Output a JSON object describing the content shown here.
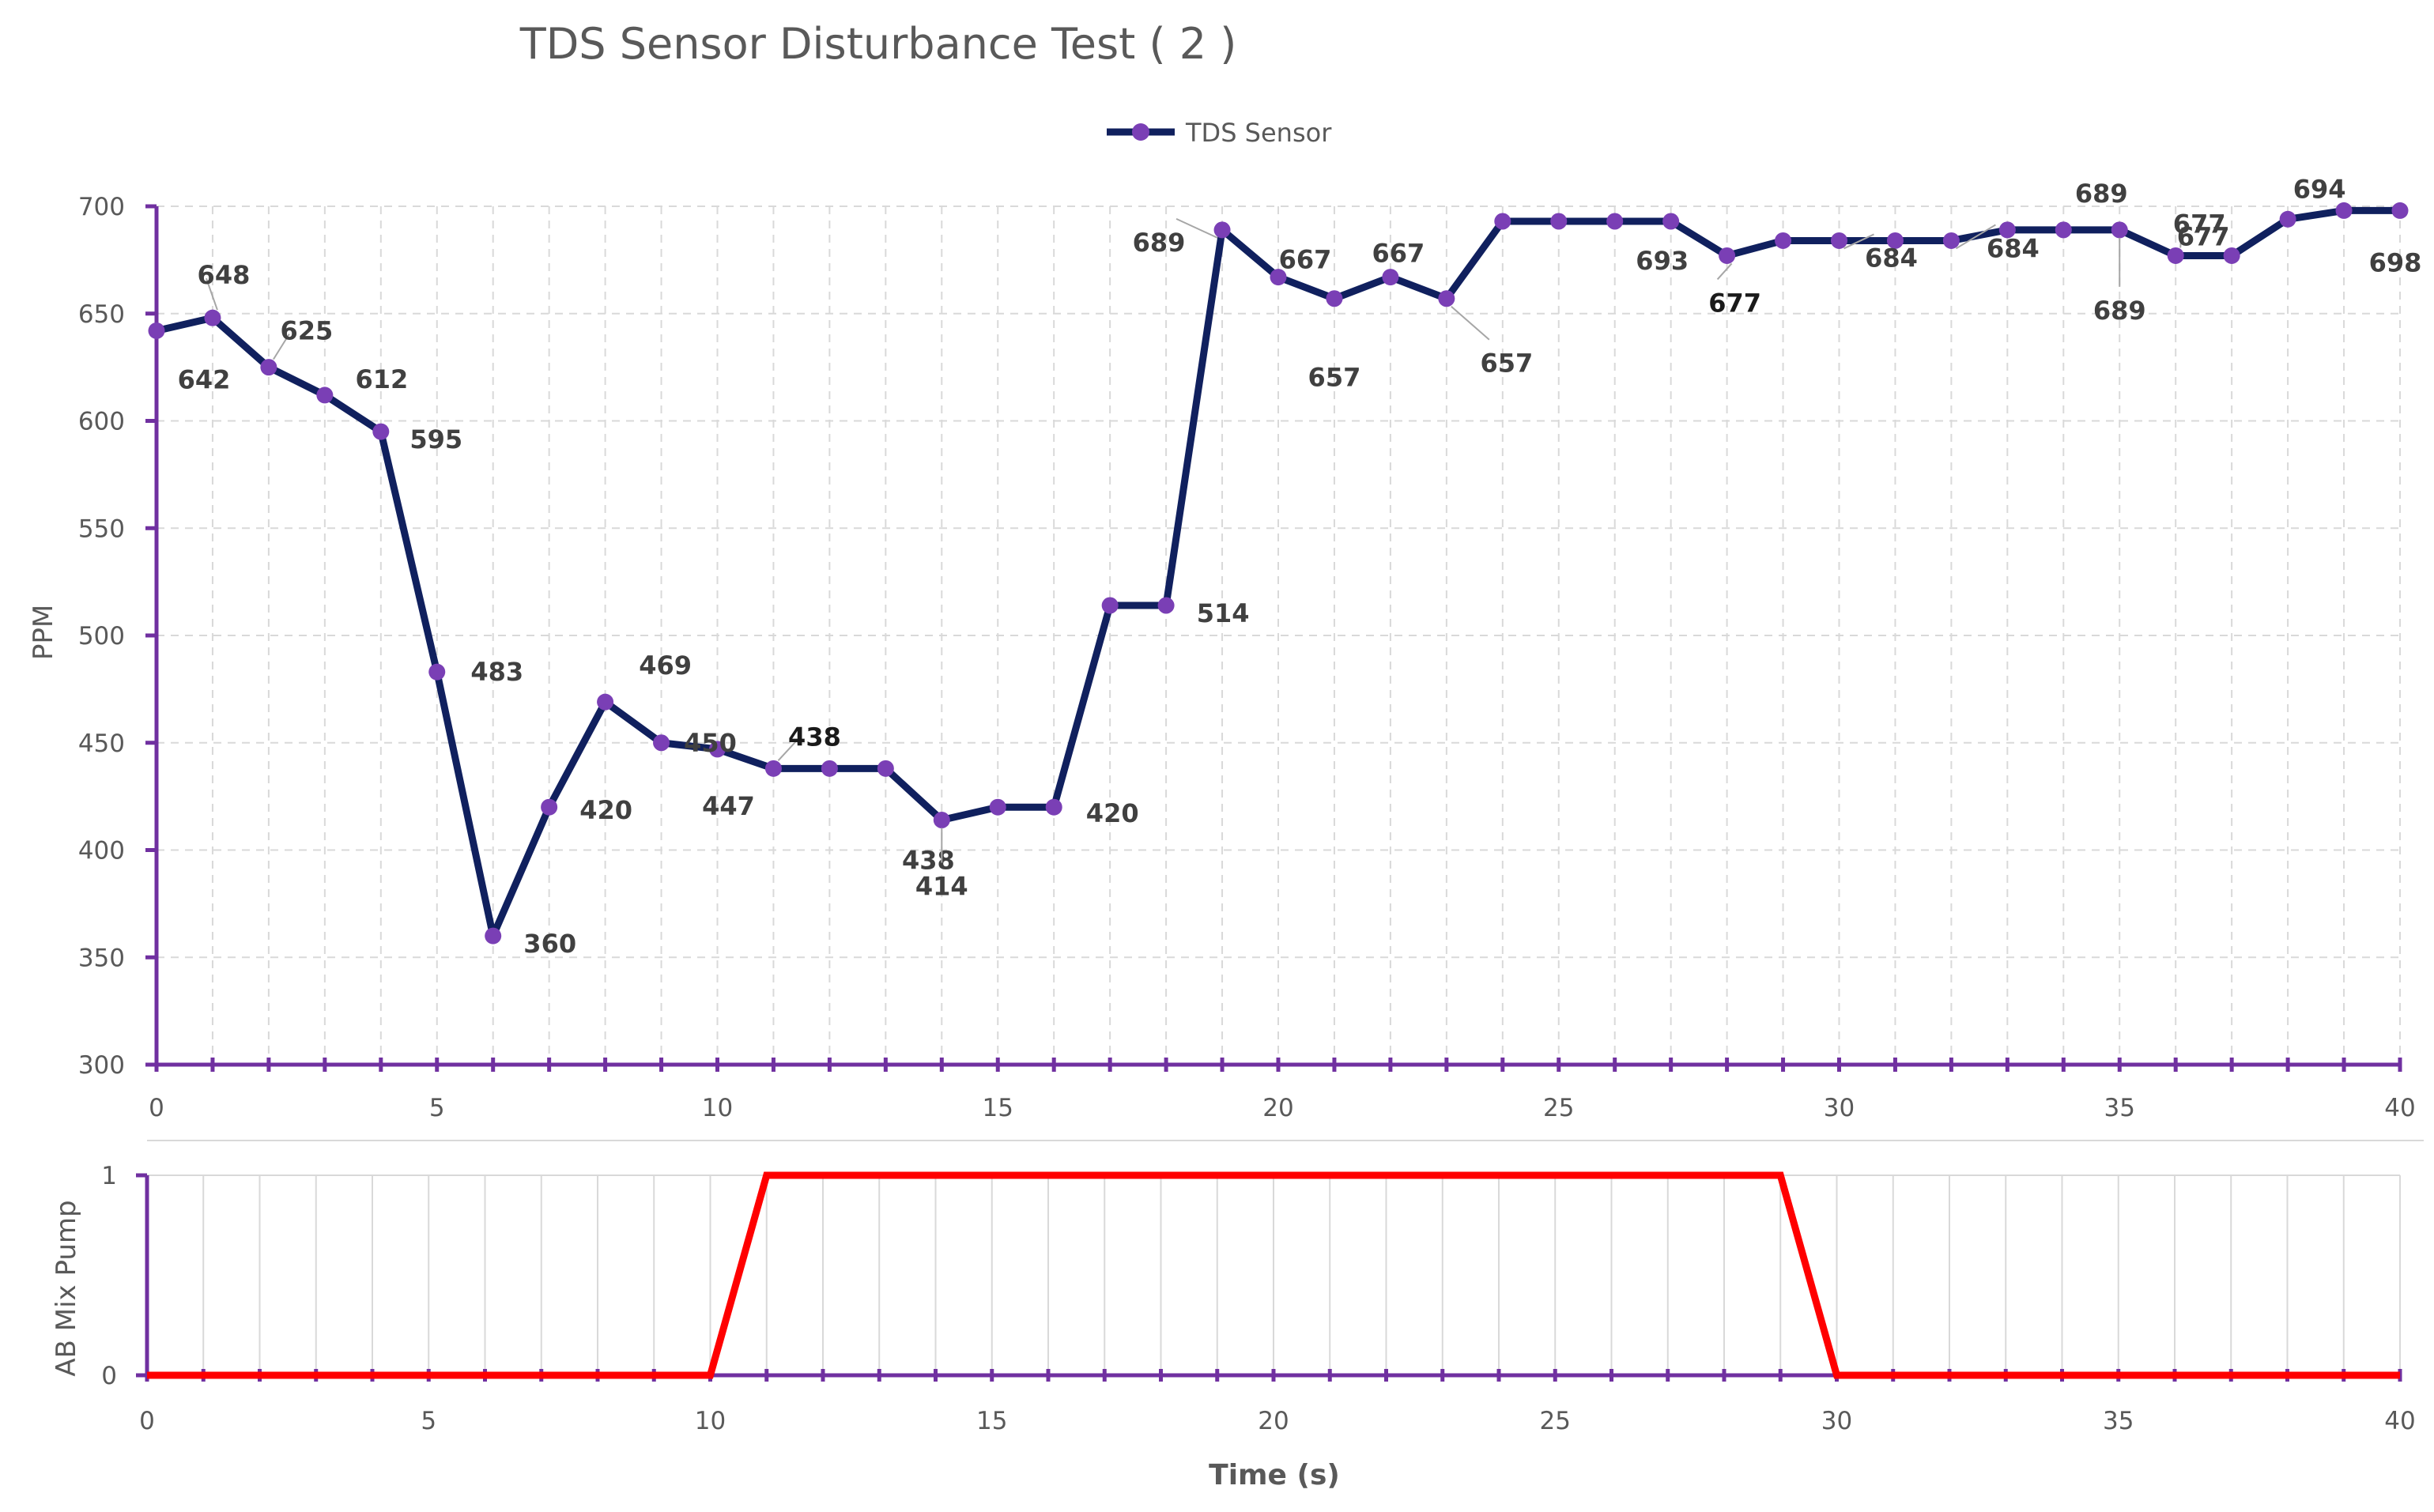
{
  "title": "TDS Sensor Disturbance Test ( 2 )",
  "colors": {
    "tds_line": "#10205e",
    "tds_marker": "#7a3fb5",
    "pump_line": "#ff0000",
    "axis": "#7030a0",
    "grid": "#d9d9d9",
    "text": "#595959"
  },
  "chart_data": [
    {
      "type": "line",
      "legend": {
        "position": "top",
        "entries": [
          "TDS Sensor"
        ]
      },
      "ylabel": "PPM",
      "xlabel": "",
      "xlim": [
        0,
        40
      ],
      "ylim": [
        300,
        700
      ],
      "x_ticks": [
        0,
        5,
        10,
        15,
        20,
        25,
        30,
        35,
        40
      ],
      "y_ticks": [
        300,
        350,
        400,
        450,
        500,
        550,
        600,
        650,
        700
      ],
      "grid": true,
      "series": [
        {
          "name": "TDS Sensor",
          "x": [
            0,
            1,
            2,
            3,
            4,
            5,
            6,
            7,
            8,
            9,
            10,
            11,
            12,
            13,
            14,
            15,
            16,
            17,
            18,
            19,
            20,
            21,
            22,
            23,
            24,
            25,
            26,
            27,
            28,
            29,
            30,
            31,
            32,
            33,
            34,
            35,
            36,
            37,
            38,
            39,
            40
          ],
          "values": [
            642,
            648,
            625,
            612,
            595,
            483,
            360,
            420,
            469,
            450,
            447,
            438,
            438,
            438,
            414,
            420,
            420,
            514,
            514,
            689,
            667,
            657,
            667,
            657,
            693,
            693,
            693,
            693,
            677,
            684,
            684,
            684,
            684,
            689,
            689,
            689,
            677,
            677,
            694,
            698,
            698
          ]
        }
      ],
      "data_labels": [
        {
          "x": 0,
          "text": "642"
        },
        {
          "x": 1,
          "text": "648"
        },
        {
          "x": 2,
          "text": "625"
        },
        {
          "x": 3,
          "text": "612"
        },
        {
          "x": 4,
          "text": "595"
        },
        {
          "x": 5,
          "text": "483"
        },
        {
          "x": 6,
          "text": "360"
        },
        {
          "x": 7,
          "text": "420"
        },
        {
          "x": 8,
          "text": "469"
        },
        {
          "x": 9,
          "text": "450"
        },
        {
          "x": 10,
          "text": "447"
        },
        {
          "x": 11,
          "text": "438"
        },
        {
          "x": 13,
          "text": "438"
        },
        {
          "x": 14,
          "text": "414"
        },
        {
          "x": 16,
          "text": "420"
        },
        {
          "x": 18,
          "text": "514"
        },
        {
          "x": 19,
          "text": "689"
        },
        {
          "x": 20,
          "text": "667"
        },
        {
          "x": 21,
          "text": "657"
        },
        {
          "x": 22,
          "text": "667"
        },
        {
          "x": 23,
          "text": "657"
        },
        {
          "x": 26,
          "text": "693"
        },
        {
          "x": 28,
          "text": "677"
        },
        {
          "x": 30,
          "text": "684"
        },
        {
          "x": 32,
          "text": "684"
        },
        {
          "x": 34,
          "text": "689"
        },
        {
          "x": 35,
          "text": "689"
        },
        {
          "x": 36,
          "text": "677"
        },
        {
          "x": 37,
          "text": "677"
        },
        {
          "x": 38,
          "text": "694"
        },
        {
          "x": 40,
          "text": "698"
        }
      ]
    },
    {
      "type": "line",
      "ylabel": "AB Mix Pump",
      "xlabel": "Time (s)",
      "xlim": [
        0,
        40
      ],
      "ylim": [
        0,
        1
      ],
      "x_ticks": [
        0,
        5,
        10,
        15,
        20,
        25,
        30,
        35,
        40
      ],
      "y_ticks": [
        0,
        1
      ],
      "grid": true,
      "series": [
        {
          "name": "",
          "x": [
            0,
            10,
            11,
            29,
            30,
            40
          ],
          "values": [
            0,
            0,
            1,
            1,
            0,
            0
          ]
        }
      ]
    }
  ]
}
